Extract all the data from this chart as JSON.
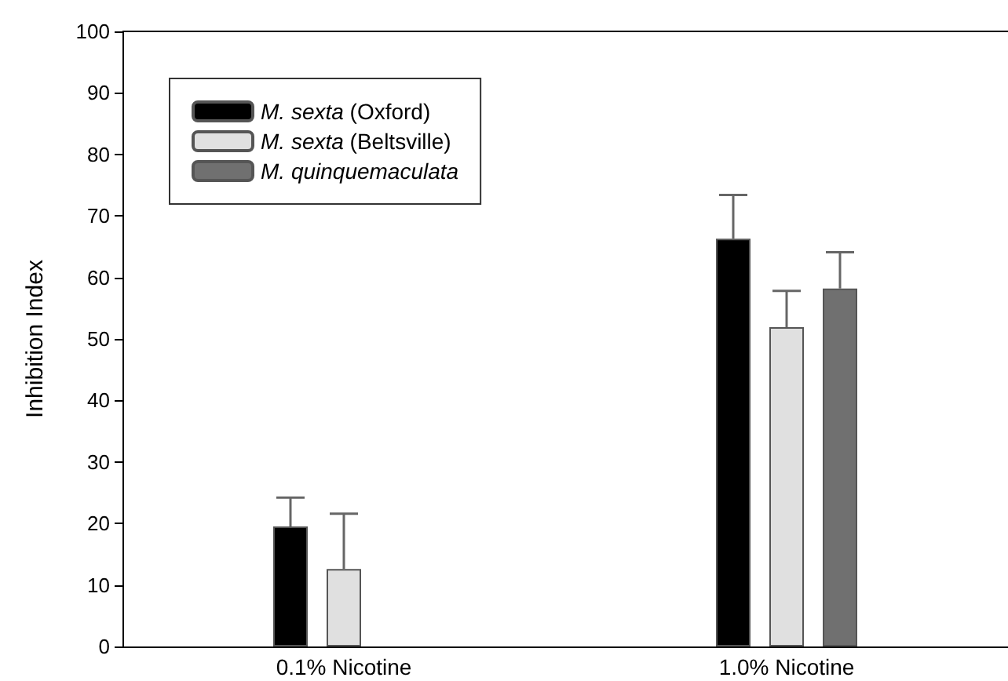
{
  "chart_data": {
    "type": "bar",
    "ylabel": "Inhibition Index",
    "categories": [
      "0.1% Nicotine",
      "1.0% Nicotine"
    ],
    "series": [
      {
        "name": "M. sexta (Oxford)",
        "color": "#000000",
        "values": [
          19.5,
          66.3
        ],
        "errors": [
          [
            19.5,
            24.2
          ],
          [
            66.3,
            73.4
          ]
        ]
      },
      {
        "name": "M. sexta (Beltsville)",
        "color": "#e0e0e0",
        "values": [
          12.6,
          51.9
        ],
        "errors": [
          [
            12.6,
            21.6
          ],
          [
            51.9,
            57.8
          ]
        ]
      },
      {
        "name": "M. quinquemaculata",
        "color": "#707070",
        "values": [
          null,
          58.2
        ],
        "errors": [
          null,
          [
            58.2,
            64.1
          ]
        ]
      }
    ],
    "ylim": [
      0,
      100
    ],
    "yticks": [
      0,
      10,
      20,
      30,
      40,
      50,
      60,
      70,
      80,
      90,
      100
    ],
    "grid": false,
    "legend": "top left"
  }
}
